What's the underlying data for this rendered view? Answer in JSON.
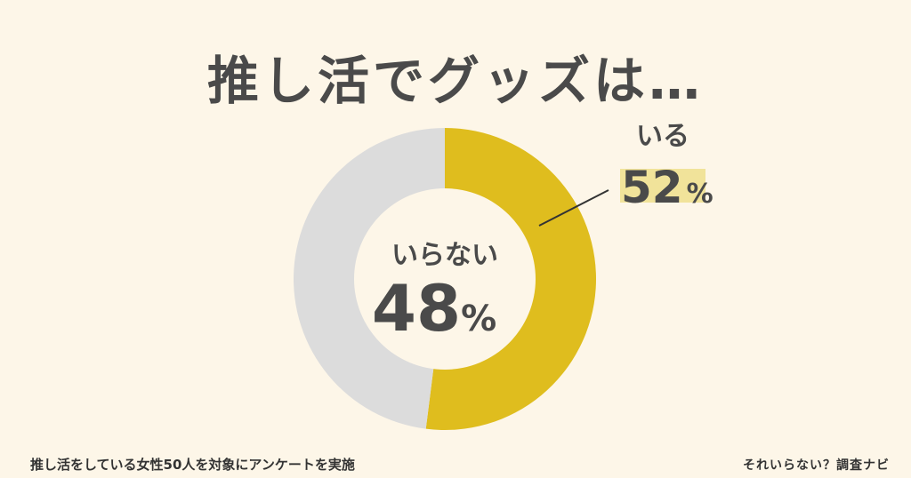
{
  "chart_data": {
    "type": "pie",
    "title": "推し活でグッズは…",
    "slices": [
      {
        "label": "いる",
        "value": 52,
        "unit": "%",
        "color": "#dfbd1e"
      },
      {
        "label": "いらない",
        "value": 48,
        "unit": "%",
        "color": "#dcdcdc"
      }
    ],
    "highlight_color": "#f1e39a"
  },
  "footnote": "推し活をしている女性50人を対象にアンケートを実施",
  "brand": "それいらない？調査ナビ",
  "colors": {
    "background": "#fdf6e8",
    "text": "#4a4a4a"
  }
}
